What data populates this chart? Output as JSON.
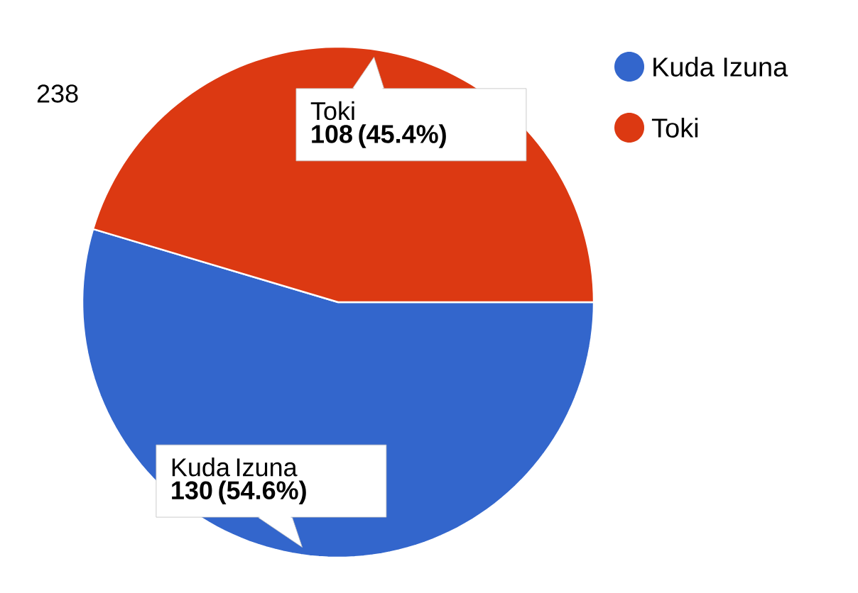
{
  "chart_data": {
    "type": "pie",
    "categories": [
      "Kuda Izuna",
      "Toki"
    ],
    "values": [
      130,
      108
    ],
    "colors": [
      "#3366cc",
      "#dc3912"
    ],
    "value_labels": [
      "130 (54.6%)",
      "108 (45.4%)"
    ],
    "annotations": [
      "238"
    ],
    "legend": "top right"
  }
}
